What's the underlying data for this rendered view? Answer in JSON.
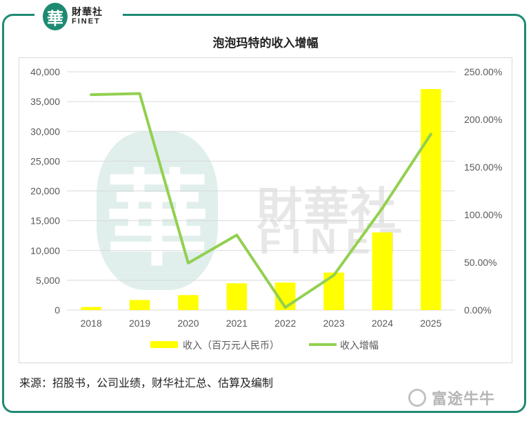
{
  "brand": {
    "logo_mark": "華",
    "name_cn": "財華社",
    "name_en": "FINET"
  },
  "watermark": {
    "seal": "華",
    "name_cn": "財華社",
    "name_en": "FINET"
  },
  "footer": {
    "source": "来源：招股书，公司业绩，财华社汇总、估算及编制",
    "partner_name": "富途牛牛",
    "partner_icon": "futu-bull-icon"
  },
  "colors": {
    "frame": "#1e8a72",
    "bar": "#ffff00",
    "line": "#92d050",
    "grid": "#d9d9d9",
    "axis_text": "#595959"
  },
  "chart_data": {
    "type": "bar",
    "title": "泡泡玛特的收入增幅",
    "categories": [
      "2018",
      "2019",
      "2020",
      "2021",
      "2022",
      "2023",
      "2024",
      "2025"
    ],
    "series": [
      {
        "name": "收入（百万元人民币）",
        "type": "bar",
        "axis": "left",
        "values": [
          515,
          1683,
          2513,
          4491,
          4617,
          6301,
          13038,
          37100
        ]
      },
      {
        "name": "收入增幅",
        "type": "line",
        "axis": "right",
        "values": [
          226.0,
          227.2,
          49.3,
          78.7,
          2.8,
          36.5,
          106.9,
          184.6
        ]
      }
    ],
    "y_left": {
      "ylim": [
        0,
        40000
      ],
      "ticks": [
        "0",
        "5,000",
        "10,000",
        "15,000",
        "20,000",
        "25,000",
        "30,000",
        "35,000",
        "40,000"
      ]
    },
    "y_right": {
      "ylim": [
        0,
        250
      ],
      "ticks": [
        "0.00%",
        "50.00%",
        "100.00%",
        "150.00%",
        "200.00%",
        "250.00%"
      ]
    },
    "grid": true,
    "legend_position": "bottom"
  }
}
